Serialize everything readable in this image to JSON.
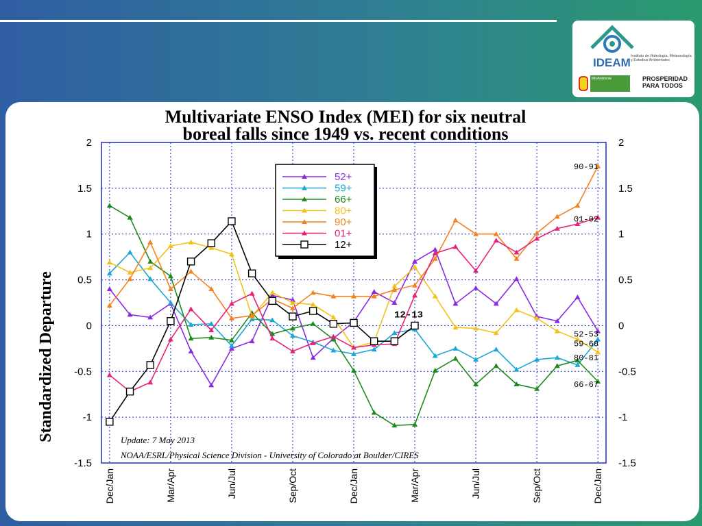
{
  "branding": {
    "wordmark": "IDEAM",
    "institute": "Instituto de Hidrología, Meteorología y Estudios Ambientales",
    "ministry": "MinAmbiente",
    "slogan_line1": "PROSPERIDAD",
    "slogan_line2": "PARA TODOS"
  },
  "colors": {
    "52+": "#8a2be2",
    "59+": "#1aa7d6",
    "66+": "#1e8a1e",
    "80+": "#f2c21a",
    "90+": "#f5821f",
    "01+": "#e6237a",
    "12+": "#000000"
  },
  "chart_data": {
    "type": "line",
    "title_line1": "Multivariate ENSO Index (MEI) for six neutral",
    "title_line2": "boreal falls since 1949 vs. recent conditions",
    "ylabel": "Standardized Departure",
    "ylim": [
      -1.5,
      2
    ],
    "yticks": [
      2,
      1.5,
      1,
      0.5,
      0,
      -0.5,
      -1,
      -1.5
    ],
    "ytick_labels": [
      "2",
      "1.5",
      "1",
      "0.5",
      "0",
      "-0.5",
      "-1",
      "-1.5"
    ],
    "xtick_labels": [
      "Dec/Jan",
      "Mar/Apr",
      "Jun/Jul",
      "Sep/Oct",
      "Dec/Jan",
      "Mar/Apr",
      "Jun/Jul",
      "Sep/Oct",
      "Dec/Jan"
    ],
    "xtick_positions": [
      1,
      4,
      7,
      10,
      13,
      16,
      19,
      22,
      25
    ],
    "grid": true,
    "legend_position": "top-center",
    "annotation": "12-13",
    "notes": [
      "Update: 7 May 2013",
      "NOAA/ESRL/Physical Science Division - University of Colorado at Boulder/CIRES"
    ],
    "series": [
      {
        "name": "52+",
        "end_label": "52-53",
        "x": [
          1,
          2,
          3,
          4,
          5,
          6,
          7,
          8,
          9,
          10,
          11,
          12,
          13,
          14,
          15,
          16,
          17,
          18,
          19,
          20,
          21,
          22,
          23,
          24,
          25
        ],
        "values": [
          0.4,
          0.12,
          0.09,
          0.24,
          -0.28,
          -0.65,
          -0.25,
          -0.17,
          0.33,
          0.28,
          -0.35,
          -0.14,
          0.04,
          0.37,
          0.25,
          0.7,
          0.83,
          0.24,
          0.41,
          0.24,
          0.51,
          0.1,
          0.05,
          0.31,
          -0.06
        ]
      },
      {
        "name": "59+",
        "end_label": "59-60",
        "x": [
          1,
          2,
          3,
          4,
          5,
          6,
          7,
          8,
          9,
          10,
          11,
          12,
          13,
          14,
          15,
          16,
          17,
          18,
          19,
          20,
          21,
          22,
          23,
          24,
          25
        ],
        "values": [
          0.57,
          0.8,
          0.51,
          0.25,
          0.01,
          0.02,
          -0.22,
          0.07,
          0.06,
          -0.11,
          -0.18,
          -0.27,
          -0.31,
          -0.26,
          -0.08,
          -0.04,
          -0.33,
          -0.25,
          -0.37,
          -0.26,
          -0.48,
          -0.37,
          -0.35,
          -0.43,
          -0.15
        ]
      },
      {
        "name": "66+",
        "end_label": "66-67",
        "x": [
          1,
          2,
          3,
          4,
          5,
          6,
          7,
          8,
          9,
          10,
          11,
          12,
          13,
          14,
          15,
          16,
          17,
          18,
          19,
          20,
          21,
          22,
          23,
          24,
          25
        ],
        "values": [
          1.31,
          1.18,
          0.7,
          0.54,
          -0.14,
          -0.13,
          -0.16,
          0.14,
          -0.09,
          -0.03,
          0.02,
          -0.15,
          -0.49,
          -0.95,
          -1.09,
          -1.08,
          -0.49,
          -0.36,
          -0.64,
          -0.44,
          -0.64,
          -0.69,
          -0.44,
          -0.38,
          -0.61
        ]
      },
      {
        "name": "80+",
        "end_label": "80-81",
        "x": [
          1,
          2,
          3,
          4,
          5,
          6,
          7,
          8,
          9,
          10,
          11,
          12,
          13,
          14,
          15,
          16,
          17,
          18,
          19,
          20,
          21,
          22,
          23,
          24,
          25
        ],
        "values": [
          0.69,
          0.58,
          0.63,
          0.87,
          0.91,
          0.85,
          0.78,
          0.1,
          0.36,
          0.25,
          0.23,
          0.09,
          -0.24,
          -0.18,
          0.43,
          0.64,
          0.32,
          -0.02,
          -0.03,
          -0.08,
          0.17,
          0.08,
          -0.06,
          -0.15,
          -0.29
        ]
      },
      {
        "name": "90+",
        "end_label": "90-91",
        "x": [
          1,
          2,
          3,
          4,
          5,
          6,
          7,
          8,
          9,
          10,
          11,
          12,
          13,
          14,
          15,
          16,
          17,
          18,
          19,
          20,
          21,
          22,
          23,
          24,
          25
        ],
        "values": [
          0.22,
          0.51,
          0.91,
          0.4,
          0.59,
          0.4,
          0.08,
          0.11,
          0.29,
          0.19,
          0.36,
          0.32,
          0.32,
          0.32,
          0.39,
          0.44,
          0.73,
          1.15,
          1.0,
          1.0,
          0.73,
          1.01,
          1.19,
          1.31,
          1.74
        ]
      },
      {
        "name": "01+",
        "end_label": "01-02",
        "x": [
          1,
          2,
          3,
          4,
          5,
          6,
          7,
          8,
          9,
          10,
          11,
          12,
          13,
          14,
          15,
          16,
          17,
          18,
          19,
          20,
          21,
          22,
          23,
          24,
          25
        ],
        "values": [
          -0.54,
          -0.72,
          -0.62,
          -0.15,
          0.18,
          -0.05,
          0.24,
          0.35,
          -0.14,
          -0.28,
          -0.19,
          -0.12,
          -0.24,
          -0.21,
          -0.2,
          0.33,
          0.79,
          0.86,
          0.6,
          0.93,
          0.8,
          0.95,
          1.06,
          1.11,
          1.18
        ]
      },
      {
        "name": "12+",
        "end_label": "",
        "x": [
          1,
          2,
          3,
          4,
          5,
          6,
          7,
          8,
          9,
          10,
          11,
          12,
          13,
          14,
          15,
          16
        ],
        "values": [
          -1.05,
          -0.72,
          -0.43,
          0.05,
          0.7,
          0.9,
          1.14,
          0.57,
          0.27,
          0.1,
          0.16,
          0.02,
          0.03,
          -0.17,
          -0.17,
          0.0
        ]
      }
    ]
  }
}
